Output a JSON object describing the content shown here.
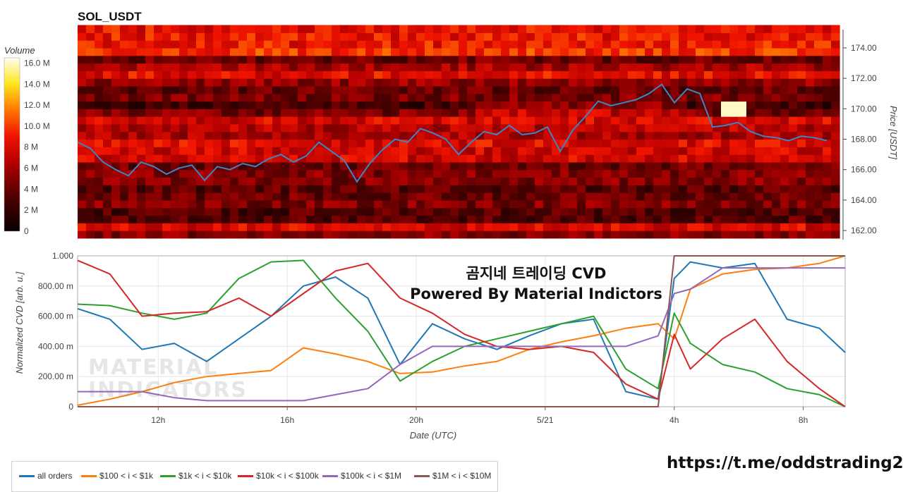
{
  "title": "SOL_USDT",
  "overlay": {
    "line1": "곰지네 트레이딩 CVD",
    "line2": "Powered By Material Indictors",
    "link": "https://t.me/oddstrading2",
    "watermark": [
      "MATERIAL",
      "INDICATORS"
    ]
  },
  "chart_data": [
    {
      "type": "heatmap",
      "title": "SOL_USDT",
      "ylabel": "Price [USDT]",
      "ylim": [
        161.4,
        175.2
      ],
      "yticks": [
        "162.00",
        "164.00",
        "166.00",
        "168.00",
        "170.00",
        "172.00",
        "174.00"
      ],
      "ytick_values": [
        162,
        164,
        166,
        168,
        170,
        172,
        174
      ],
      "colorbar": {
        "label": "Volume",
        "ticks": [
          "0",
          "2 M",
          "4 M",
          "6 M",
          "8 M",
          "10.0 M",
          "12.0 M",
          "14.0 M",
          "16.0 M"
        ],
        "tick_values": [
          0,
          2,
          4,
          6,
          8,
          10,
          12,
          14,
          16
        ],
        "range": [
          0,
          16.5
        ]
      },
      "price_series": {
        "name": "price",
        "color": "#3a86c8",
        "t": [
          0,
          0.5,
          1,
          1.5,
          2,
          2.5,
          3,
          3.5,
          4,
          4.5,
          5,
          5.5,
          6,
          6.5,
          7,
          7.5,
          8,
          8.5,
          9,
          9.5,
          10,
          10.5,
          11,
          11.5,
          12,
          12.5,
          13,
          13.5,
          14,
          14.5,
          15,
          15.5,
          16,
          16.5,
          17,
          17.5,
          18,
          18.5,
          19,
          19.5,
          20,
          20.5,
          21,
          21.5,
          22,
          22.5,
          23,
          23.5,
          24,
          24.5,
          25,
          25.5,
          26,
          26.5,
          27,
          27.5,
          28,
          28.5,
          29,
          29.5
        ],
        "price": [
          167.8,
          167.4,
          166.5,
          166.0,
          165.6,
          166.5,
          166.2,
          165.7,
          166.1,
          166.3,
          165.3,
          166.2,
          166.0,
          166.4,
          166.2,
          166.7,
          167.0,
          166.5,
          166.9,
          167.8,
          167.2,
          166.6,
          165.2,
          166.4,
          167.3,
          168.0,
          167.8,
          168.7,
          168.4,
          168.0,
          167.0,
          167.8,
          168.5,
          168.3,
          168.9,
          168.3,
          168.4,
          168.8,
          167.2,
          168.6,
          169.5,
          170.5,
          170.2,
          170.4,
          170.6,
          171.0,
          171.6,
          170.4,
          171.3,
          171.0,
          168.8,
          168.9,
          169.1,
          168.5,
          168.2,
          168.1,
          167.9,
          168.2,
          168.1,
          167.9
        ]
      }
    },
    {
      "type": "line",
      "xlabel": "Date (UTC)",
      "ylabel": "Normalized CVD [arb. u.]",
      "ylim": [
        0,
        1
      ],
      "xlim": [
        9.5,
        33.3
      ],
      "xticks": [
        "12h",
        "16h",
        "20h",
        "5/21",
        "4h",
        "8h"
      ],
      "xtick_values": [
        12,
        16,
        20,
        24,
        28,
        32
      ],
      "yticks": [
        "0",
        "200.00 m",
        "400.00 m",
        "600.00 m",
        "800.00 m",
        "1.000"
      ],
      "ytick_values": [
        0,
        0.2,
        0.4,
        0.6,
        0.8,
        1.0
      ],
      "x": [
        9.5,
        10.5,
        11.5,
        12.5,
        13.5,
        14.5,
        15.5,
        16.5,
        17.5,
        18.5,
        19.5,
        20.5,
        21.5,
        22.5,
        23.5,
        24.5,
        25.5,
        26.5,
        27.5,
        28,
        28.5,
        29.5,
        30.5,
        31.5,
        32.5,
        33.3
      ],
      "series": [
        {
          "name": "all orders",
          "color": "#1f77b4",
          "values": [
            0.65,
            0.58,
            0.38,
            0.42,
            0.3,
            0.45,
            0.6,
            0.8,
            0.86,
            0.72,
            0.28,
            0.55,
            0.45,
            0.38,
            0.47,
            0.55,
            0.58,
            0.1,
            0.05,
            0.85,
            0.96,
            0.92,
            0.95,
            0.58,
            0.52,
            0.36
          ]
        },
        {
          "name": "$100 < i < $1k",
          "color": "#ff7f0e",
          "values": [
            0.01,
            0.05,
            0.1,
            0.16,
            0.2,
            0.22,
            0.24,
            0.39,
            0.35,
            0.3,
            0.22,
            0.23,
            0.27,
            0.3,
            0.38,
            0.43,
            0.47,
            0.52,
            0.55,
            0.45,
            0.78,
            0.88,
            0.91,
            0.92,
            0.95,
            1.0
          ]
        },
        {
          "name": "$1k < i < $10k",
          "color": "#2ca02c",
          "values": [
            0.68,
            0.67,
            0.62,
            0.58,
            0.62,
            0.85,
            0.96,
            0.97,
            0.72,
            0.5,
            0.17,
            0.3,
            0.4,
            0.45,
            0.5,
            0.55,
            0.6,
            0.25,
            0.12,
            0.62,
            0.42,
            0.28,
            0.23,
            0.12,
            0.08,
            0.0
          ]
        },
        {
          "name": "$10k < i < $100k",
          "color": "#d62728",
          "values": [
            0.97,
            0.88,
            0.6,
            0.62,
            0.63,
            0.72,
            0.6,
            0.75,
            0.9,
            0.95,
            0.72,
            0.62,
            0.48,
            0.4,
            0.38,
            0.4,
            0.36,
            0.15,
            0.05,
            0.48,
            0.25,
            0.45,
            0.58,
            0.3,
            0.12,
            0.0
          ]
        },
        {
          "name": "$100k < i < $1M",
          "color": "#9467bd",
          "values": [
            0.1,
            0.1,
            0.1,
            0.06,
            0.04,
            0.04,
            0.04,
            0.04,
            0.08,
            0.12,
            0.28,
            0.4,
            0.4,
            0.4,
            0.4,
            0.4,
            0.4,
            0.4,
            0.47,
            0.75,
            0.78,
            0.92,
            0.92,
            0.92,
            0.92,
            0.92
          ]
        },
        {
          "name": "$1M < i < $10M",
          "color": "#8c564b",
          "values": [
            0,
            0,
            0,
            0,
            0,
            0,
            0,
            0,
            0,
            0,
            0,
            0,
            0,
            0,
            0,
            0,
            0,
            0,
            0,
            1.0,
            1.0,
            1.0,
            1.0,
            1.0,
            1.0,
            1.0
          ]
        }
      ],
      "legend_placement": "bottom-left"
    }
  ]
}
